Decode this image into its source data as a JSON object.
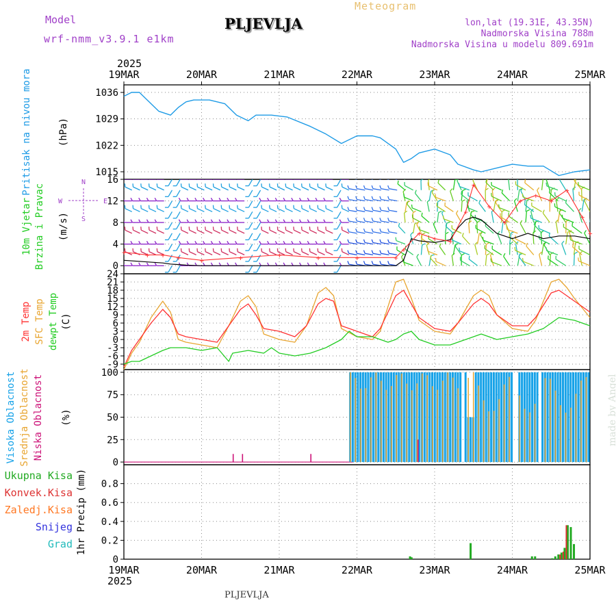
{
  "header": {
    "model_label": "Model",
    "model_name": "wrf-nmm_v3.9.1 e1km",
    "station": "PLJEVLJA",
    "product": "Meteogram",
    "lonlat": "lon,lat (19.31E, 43.35N)",
    "elevation": "Nadmorska Visina 788m",
    "model_elevation": "Nadmorska Visina u modelu 809.691m",
    "footer_station": "PLJEVLJA",
    "credit": "made by Angel"
  },
  "colors": {
    "pressure": "#1e9be6",
    "wind_speed": "#000000",
    "gust": "#ff3030",
    "t2m": "#ff3030",
    "sfc": "#e8a530",
    "dewpt": "#22cc22",
    "high_cloud": "#16a2e8",
    "mid_cloud": "#e8a530",
    "low_cloud": "#cc1177",
    "total_precip": "#22aa22",
    "conv_precip": "#dd3333",
    "frz_precip": "#ff7722",
    "snow": "#3333dd",
    "hail": "#22bbbb"
  },
  "chart_data": [
    {
      "type": "line",
      "title": "Pritisak na nivou mora",
      "ylabel": "(hPa)",
      "ylim": [
        1013,
        1038
      ],
      "yticks": [
        1015,
        1022,
        1029,
        1036
      ],
      "x_year": "2025",
      "x_ticks": [
        "19MAR",
        "20MAR",
        "21MAR",
        "22MAR",
        "23MAR",
        "24MAR",
        "25MAR"
      ],
      "xlim_days": [
        0,
        6
      ],
      "series": [
        {
          "x": [
            0,
            0.1,
            0.2,
            0.3,
            0.45,
            0.6,
            0.7,
            0.8,
            0.9,
            1.0,
            1.1,
            1.3,
            1.45,
            1.6,
            1.7,
            1.9,
            2.1,
            2.4,
            2.6,
            2.8,
            3.0,
            3.2,
            3.3,
            3.5,
            3.6,
            3.7,
            3.8,
            4.0,
            4.2,
            4.3,
            4.5,
            4.6,
            4.8,
            5.0,
            5.2,
            5.4,
            5.6,
            5.8,
            6.0
          ],
          "values": [
            1035,
            1036,
            1036,
            1034,
            1031,
            1030,
            1032,
            1033.5,
            1034,
            1034,
            1034,
            1033,
            1030,
            1028.5,
            1030,
            1030,
            1029.5,
            1027,
            1025,
            1022.5,
            1024.5,
            1024.5,
            1024,
            1021,
            1017.5,
            1018.5,
            1020,
            1021,
            1019.5,
            1017,
            1015.5,
            1015,
            1016,
            1017,
            1016.5,
            1016.5,
            1014,
            1015,
            1015.5
          ]
        }
      ]
    },
    {
      "type": "line",
      "title": "10m Vjetar Brzina i Pravac",
      "ylabel": "(m/s)",
      "ylim": [
        -1.5,
        16
      ],
      "yticks": [
        0,
        4,
        8,
        12,
        16
      ],
      "compass": [
        "N",
        "W",
        "E",
        "S"
      ],
      "series": [
        {
          "name": "wind_speed",
          "x": [
            0,
            0.3,
            0.5,
            0.6,
            0.8,
            1.0,
            1.5,
            2.0,
            2.5,
            3.0,
            3.5,
            3.6,
            3.7,
            3.8,
            4.0,
            4.2,
            4.3,
            4.4,
            4.5,
            4.6,
            4.8,
            5.0,
            5.2,
            5.4,
            5.6,
            5.8,
            6.0
          ],
          "values": [
            1,
            0.7,
            0.5,
            0.3,
            0.1,
            0,
            0,
            0,
            0,
            0,
            0,
            1,
            5,
            4.6,
            4.3,
            4.8,
            7,
            8.5,
            9,
            8.5,
            6,
            5,
            6,
            5,
            5.5,
            5.5,
            5
          ]
        },
        {
          "name": "gust",
          "x": [
            0,
            0.3,
            0.5,
            0.7,
            1.0,
            1.5,
            2.0,
            2.5,
            3.0,
            3.5,
            3.6,
            3.8,
            4.0,
            4.2,
            4.4,
            4.5,
            4.7,
            4.9,
            5.1,
            5.3,
            5.5,
            5.7,
            5.9,
            6.0
          ],
          "values": [
            2.5,
            2,
            2,
            1.5,
            1,
            1.5,
            2,
            1.5,
            1.5,
            1.5,
            3,
            6,
            5,
            4.5,
            10,
            15,
            11,
            8,
            12,
            13,
            12,
            14,
            9,
            6
          ]
        }
      ]
    },
    {
      "type": "line",
      "title": "2m Temp / SFC Temp / dewpt Temp",
      "ylabel": "(C)",
      "ylim": [
        -11,
        24
      ],
      "yticks": [
        -9,
        -6,
        -3,
        0,
        3,
        6,
        9,
        12,
        15,
        18,
        21,
        24
      ],
      "series": [
        {
          "name": "2m Temp",
          "x": [
            0,
            0.1,
            0.2,
            0.35,
            0.5,
            0.6,
            0.7,
            0.8,
            1.0,
            1.2,
            1.35,
            1.5,
            1.6,
            1.7,
            1.8,
            2.0,
            2.2,
            2.35,
            2.5,
            2.6,
            2.7,
            2.8,
            3.0,
            3.2,
            3.3,
            3.5,
            3.6,
            3.7,
            3.8,
            4.0,
            4.2,
            4.3,
            4.5,
            4.6,
            4.7,
            4.8,
            5.0,
            5.2,
            5.3,
            5.5,
            5.6,
            5.7,
            5.8,
            6.0
          ],
          "values": [
            -10,
            -4,
            0,
            6,
            11,
            8,
            2,
            1,
            0,
            -1,
            5,
            11,
            13,
            9,
            4,
            3,
            1,
            5,
            13,
            15,
            14,
            5,
            3,
            1,
            4,
            16,
            18,
            13,
            8,
            4,
            3,
            6,
            13,
            15,
            13,
            9,
            5,
            5,
            8,
            17,
            18,
            16,
            14,
            10
          ]
        },
        {
          "name": "SFC Temp",
          "x": [
            0,
            0.1,
            0.2,
            0.35,
            0.5,
            0.6,
            0.7,
            0.8,
            1.0,
            1.2,
            1.35,
            1.5,
            1.6,
            1.7,
            1.8,
            2.0,
            2.2,
            2.35,
            2.5,
            2.6,
            2.7,
            2.8,
            3.0,
            3.2,
            3.3,
            3.5,
            3.6,
            3.7,
            3.8,
            4.0,
            4.2,
            4.3,
            4.5,
            4.6,
            4.7,
            4.8,
            5.0,
            5.2,
            5.3,
            5.5,
            5.6,
            5.7,
            5.8,
            6.0
          ],
          "values": [
            -11,
            -5,
            -1,
            8,
            14,
            10,
            0,
            -1,
            -2,
            -3,
            5,
            14,
            16,
            12,
            2,
            0,
            -1,
            5,
            17,
            19,
            16,
            4,
            1,
            0,
            3,
            21,
            22,
            15,
            7,
            3,
            2,
            6,
            16,
            18,
            16,
            9,
            4,
            3,
            7,
            21,
            22,
            19,
            15,
            8
          ]
        },
        {
          "name": "dewpt Temp",
          "x": [
            0,
            0.1,
            0.2,
            0.35,
            0.5,
            0.6,
            0.8,
            1.0,
            1.2,
            1.35,
            1.4,
            1.6,
            1.8,
            1.9,
            2.0,
            2.2,
            2.4,
            2.6,
            2.8,
            2.9,
            3.0,
            3.2,
            3.4,
            3.5,
            3.6,
            3.7,
            3.8,
            4.0,
            4.2,
            4.3,
            4.5,
            4.6,
            4.8,
            5.0,
            5.2,
            5.4,
            5.6,
            5.8,
            6.0
          ],
          "values": [
            -9,
            -8,
            -8,
            -6,
            -4,
            -3,
            -3,
            -4,
            -3,
            -8,
            -5,
            -4,
            -5,
            -3,
            -5,
            -6,
            -5,
            -3,
            0,
            3,
            1,
            1,
            -1,
            0,
            2,
            3,
            0,
            -2,
            -2,
            -1,
            1,
            2,
            0,
            1,
            2,
            4,
            8,
            7,
            5
          ]
        }
      ]
    },
    {
      "type": "bar",
      "title": "Visoka Oblacnost / Srednja Oblacnost / Niska Oblacnost",
      "ylabel": "(%)",
      "ylim": [
        -3,
        103
      ],
      "yticks": [
        0,
        25,
        50,
        75,
        100
      ],
      "series": [
        {
          "name": "Visoka Oblacnost",
          "summary": "about 100% almost continuously from 22MAR 00h to 25MAR, short gaps near 23MAR and 24MAR",
          "from_day": 2.9,
          "to_day": 6.0,
          "level": 100
        },
        {
          "name": "Srednja Oblacnost",
          "summary": "frequent bars between 75% and 100% from 22MAR to 23MAR, sporadic later",
          "from_day": 2.9,
          "to_day": 6.0,
          "level": 90
        },
        {
          "name": "Niska Oblacnost",
          "x": [
            1.4,
            1.52,
            2.4,
            3.78
          ],
          "values": [
            9,
            9,
            9,
            25
          ]
        }
      ]
    },
    {
      "type": "bar",
      "ylabel": "1hr Precip (mm)",
      "ylim": [
        0,
        1.0
      ],
      "yticks": [
        0,
        0.2,
        0.4,
        0.6,
        0.8
      ],
      "legend": [
        "Ukupna Kisa",
        "Konvek.Kisa",
        "Zaledj.Kisa",
        "Snijeg",
        "Grad"
      ],
      "series": [
        {
          "name": "Ukupna Kisa",
          "x": [
            3.67,
            3.69,
            4.45,
            5.24,
            5.28,
            5.5,
            5.54,
            5.58,
            5.62,
            5.66,
            5.7,
            5.74,
            5.78
          ],
          "values": [
            0.03,
            0.02,
            0.17,
            0.03,
            0.03,
            0.01,
            0.03,
            0.05,
            0.07,
            0.12,
            0.36,
            0.34,
            0.16
          ]
        },
        {
          "name": "Konvek.Kisa",
          "x": [
            5.62,
            5.66,
            5.7
          ],
          "values": [
            0.05,
            0.08,
            0.36
          ]
        }
      ]
    }
  ]
}
